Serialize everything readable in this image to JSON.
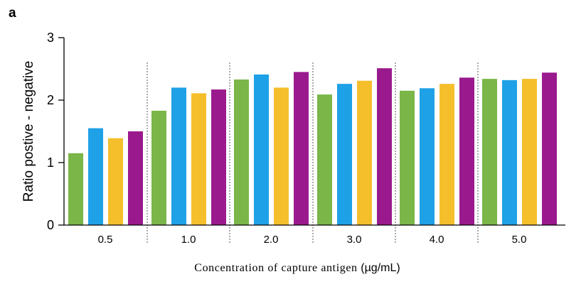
{
  "panel_label": "a",
  "chart_data": {
    "type": "bar",
    "categories": [
      "0.5",
      "1.0",
      "2.0",
      "3.0",
      "4.0",
      "5.0"
    ],
    "series": [
      {
        "color": "#7ab648",
        "values": [
          1.15,
          1.83,
          2.33,
          2.09,
          2.15,
          2.34
        ]
      },
      {
        "color": "#1ea1e6",
        "values": [
          1.55,
          2.2,
          2.41,
          2.26,
          2.19,
          2.32
        ]
      },
      {
        "color": "#f5bf2c",
        "values": [
          1.39,
          2.11,
          2.2,
          2.31,
          2.26,
          2.34
        ]
      },
      {
        "color": "#9a1a8e",
        "values": [
          1.5,
          2.17,
          2.45,
          2.51,
          2.36,
          2.44
        ]
      }
    ],
    "ylim": [
      0,
      3
    ],
    "yticks": [
      "0",
      "1",
      "2",
      "3"
    ],
    "ylabel": "Ratio postive - negative",
    "xlabel": "Concentration of capture antigen",
    "xlabel_unit": "(µg/mL)",
    "group_separators": "dotted vertical lines",
    "grid": false,
    "legend": "none"
  }
}
